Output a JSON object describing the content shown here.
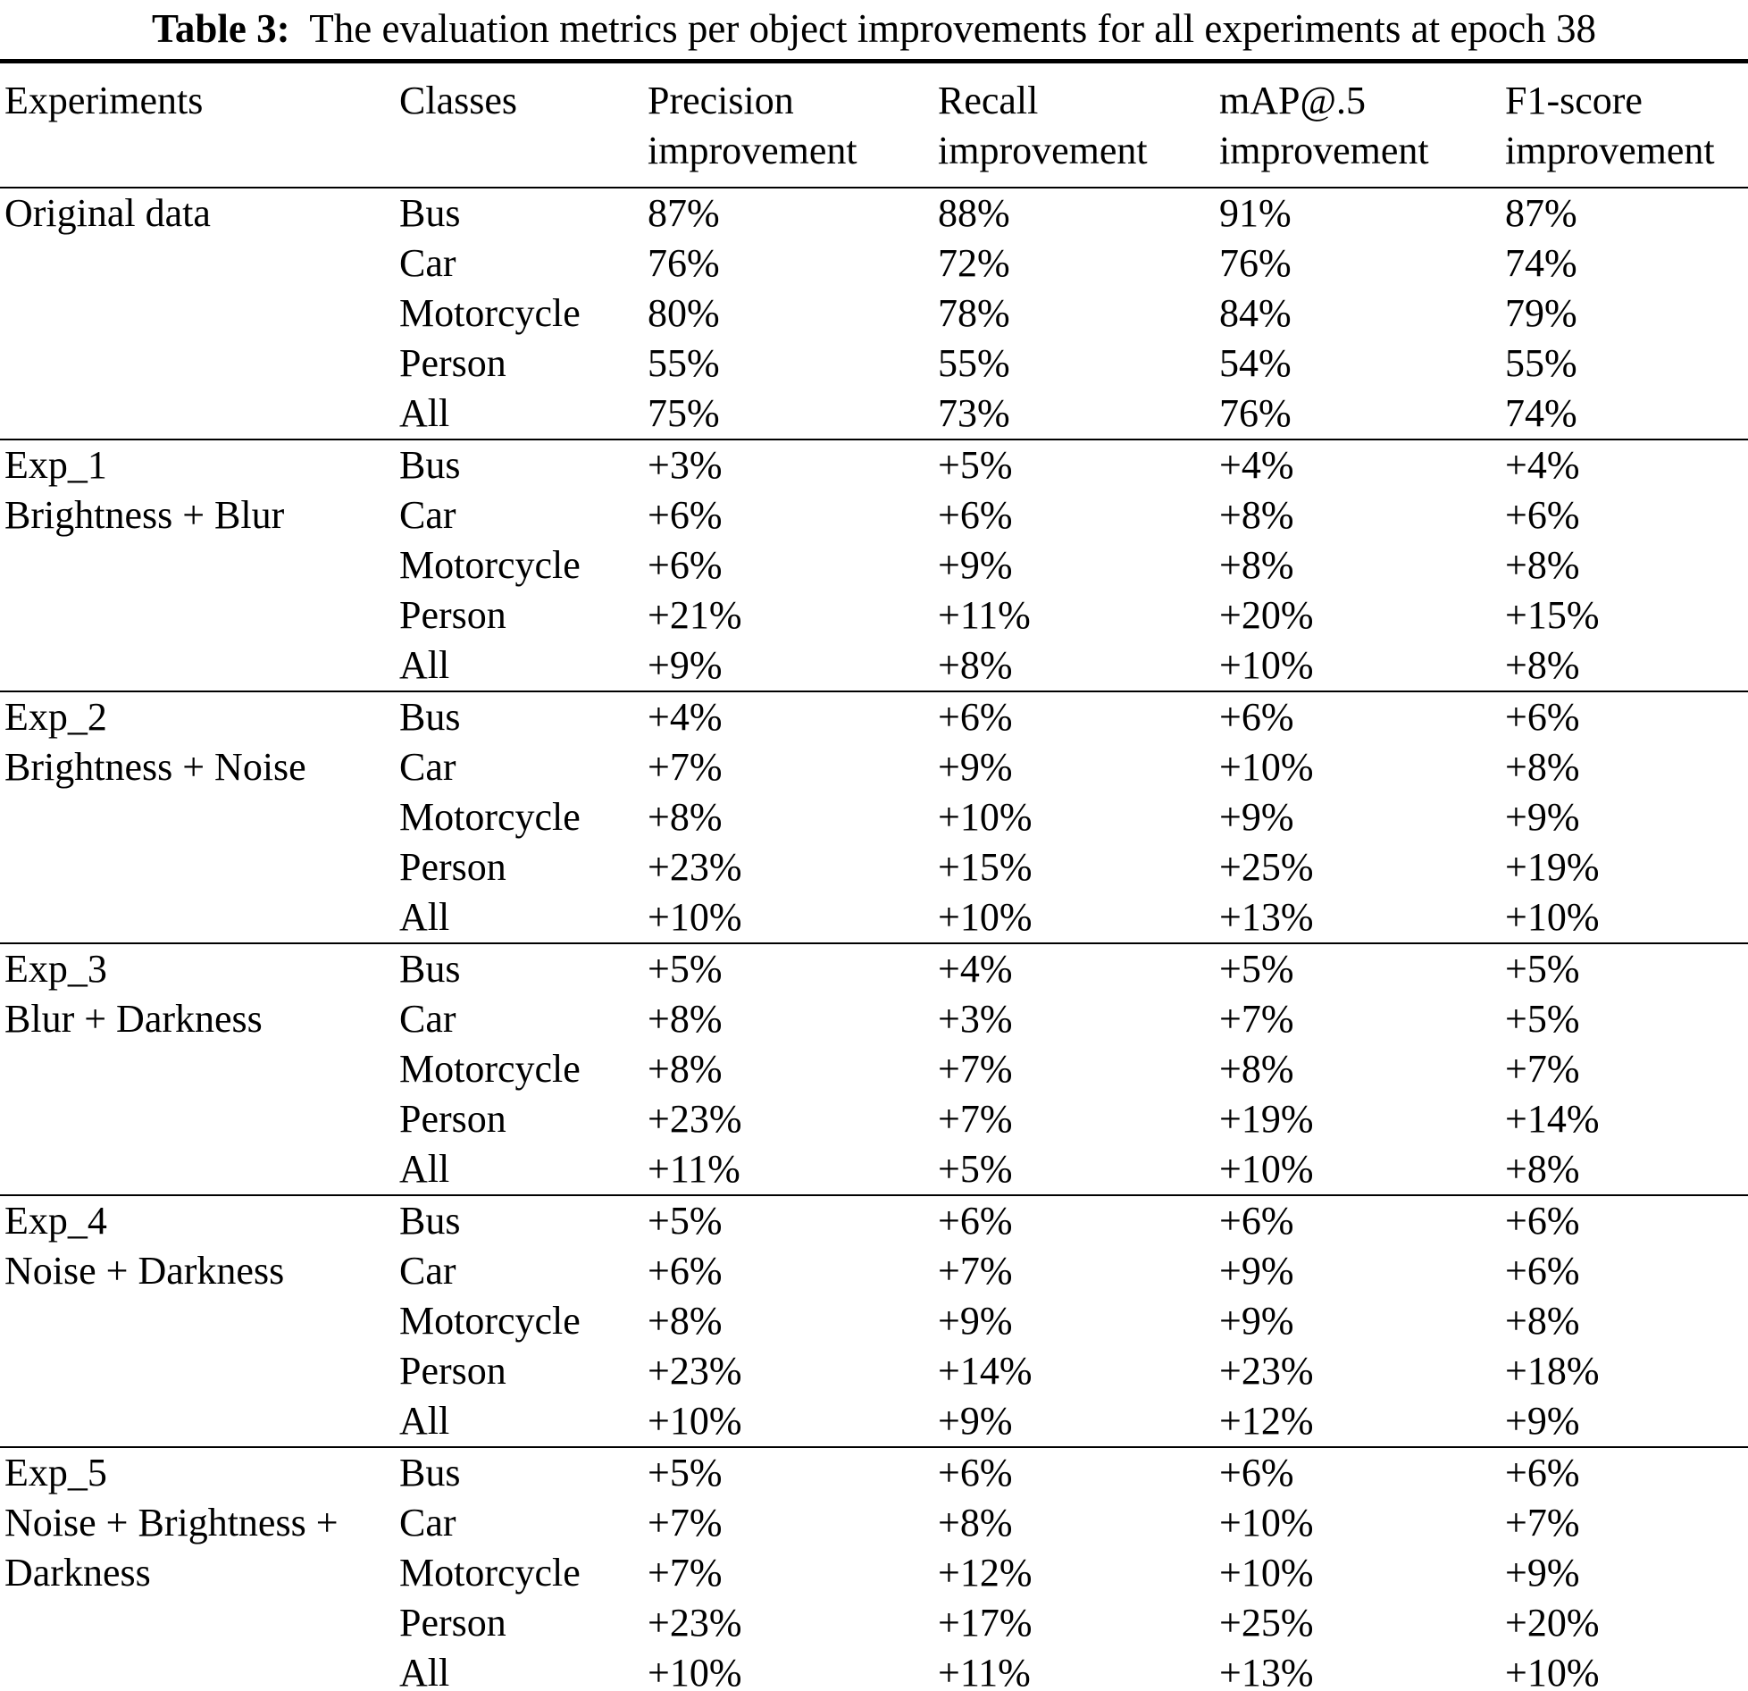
{
  "caption": {
    "label": "Table 3:",
    "text": "The evaluation metrics per object improvements for all experiments at epoch 38"
  },
  "table": {
    "columns": [
      {
        "line1": "Experiments",
        "line2": ""
      },
      {
        "line1": "Classes",
        "line2": ""
      },
      {
        "line1": "Precision",
        "line2": "improvement"
      },
      {
        "line1": "Recall",
        "line2": "improvement"
      },
      {
        "line1": "mAP@.5",
        "line2": "improvement"
      },
      {
        "line1": "F1-score",
        "line2": "improvement"
      }
    ],
    "blocks": [
      {
        "experiment": [
          "Original data"
        ],
        "rows": [
          {
            "class": "Bus",
            "precision": "87%",
            "recall": "88%",
            "map": "91%",
            "f1": "87%"
          },
          {
            "class": "Car",
            "precision": "76%",
            "recall": "72%",
            "map": "76%",
            "f1": "74%"
          },
          {
            "class": "Motorcycle",
            "precision": "80%",
            "recall": "78%",
            "map": "84%",
            "f1": "79%"
          },
          {
            "class": "Person",
            "precision": "55%",
            "recall": "55%",
            "map": "54%",
            "f1": "55%"
          },
          {
            "class": "All",
            "precision": "75%",
            "recall": "73%",
            "map": "76%",
            "f1": "74%"
          }
        ]
      },
      {
        "experiment": [
          "Exp_1",
          "Brightness + Blur"
        ],
        "rows": [
          {
            "class": "Bus",
            "precision": "+3%",
            "recall": "+5%",
            "map": "+4%",
            "f1": "+4%"
          },
          {
            "class": "Car",
            "precision": "+6%",
            "recall": "+6%",
            "map": "+8%",
            "f1": "+6%"
          },
          {
            "class": "Motorcycle",
            "precision": "+6%",
            "recall": "+9%",
            "map": "+8%",
            "f1": "+8%"
          },
          {
            "class": "Person",
            "precision": "+21%",
            "recall": "+11%",
            "map": "+20%",
            "f1": "+15%"
          },
          {
            "class": "All",
            "precision": "+9%",
            "recall": "+8%",
            "map": "+10%",
            "f1": "+8%"
          }
        ]
      },
      {
        "experiment": [
          "Exp_2",
          "Brightness + Noise"
        ],
        "rows": [
          {
            "class": "Bus",
            "precision": "+4%",
            "recall": "+6%",
            "map": "+6%",
            "f1": "+6%"
          },
          {
            "class": "Car",
            "precision": "+7%",
            "recall": "+9%",
            "map": "+10%",
            "f1": "+8%"
          },
          {
            "class": "Motorcycle",
            "precision": "+8%",
            "recall": "+10%",
            "map": "+9%",
            "f1": "+9%"
          },
          {
            "class": "Person",
            "precision": "+23%",
            "recall": "+15%",
            "map": "+25%",
            "f1": "+19%"
          },
          {
            "class": "All",
            "precision": "+10%",
            "recall": "+10%",
            "map": "+13%",
            "f1": "+10%"
          }
        ]
      },
      {
        "experiment": [
          "Exp_3",
          "Blur + Darkness"
        ],
        "rows": [
          {
            "class": "Bus",
            "precision": "+5%",
            "recall": "+4%",
            "map": "+5%",
            "f1": "+5%"
          },
          {
            "class": "Car",
            "precision": "+8%",
            "recall": "+3%",
            "map": "+7%",
            "f1": "+5%"
          },
          {
            "class": "Motorcycle",
            "precision": "+8%",
            "recall": "+7%",
            "map": "+8%",
            "f1": "+7%"
          },
          {
            "class": "Person",
            "precision": "+23%",
            "recall": "+7%",
            "map": "+19%",
            "f1": "+14%"
          },
          {
            "class": "All",
            "precision": "+11%",
            "recall": "+5%",
            "map": "+10%",
            "f1": "+8%"
          }
        ]
      },
      {
        "experiment": [
          "Exp_4",
          "Noise + Darkness"
        ],
        "rows": [
          {
            "class": "Bus",
            "precision": "+5%",
            "recall": "+6%",
            "map": "+6%",
            "f1": "+6%"
          },
          {
            "class": "Car",
            "precision": "+6%",
            "recall": "+7%",
            "map": "+9%",
            "f1": "+6%"
          },
          {
            "class": "Motorcycle",
            "precision": "+8%",
            "recall": "+9%",
            "map": "+9%",
            "f1": "+8%"
          },
          {
            "class": "Person",
            "precision": "+23%",
            "recall": "+14%",
            "map": "+23%",
            "f1": "+18%"
          },
          {
            "class": "All",
            "precision": "+10%",
            "recall": "+9%",
            "map": "+12%",
            "f1": "+9%"
          }
        ]
      },
      {
        "experiment": [
          "Exp_5",
          "Noise + Brightness +",
          "Darkness"
        ],
        "rows": [
          {
            "class": "Bus",
            "precision": "+5%",
            "recall": "+6%",
            "map": "+6%",
            "f1": "+6%"
          },
          {
            "class": "Car",
            "precision": "+7%",
            "recall": "+8%",
            "map": "+10%",
            "f1": "+7%"
          },
          {
            "class": "Motorcycle",
            "precision": "+7%",
            "recall": "+12%",
            "map": "+10%",
            "f1": "+9%"
          },
          {
            "class": "Person",
            "precision": "+23%",
            "recall": "+17%",
            "map": "+25%",
            "f1": "+20%"
          },
          {
            "class": "All",
            "precision": "+10%",
            "recall": "+11%",
            "map": "+13%",
            "f1": "+10%"
          }
        ]
      }
    ]
  }
}
